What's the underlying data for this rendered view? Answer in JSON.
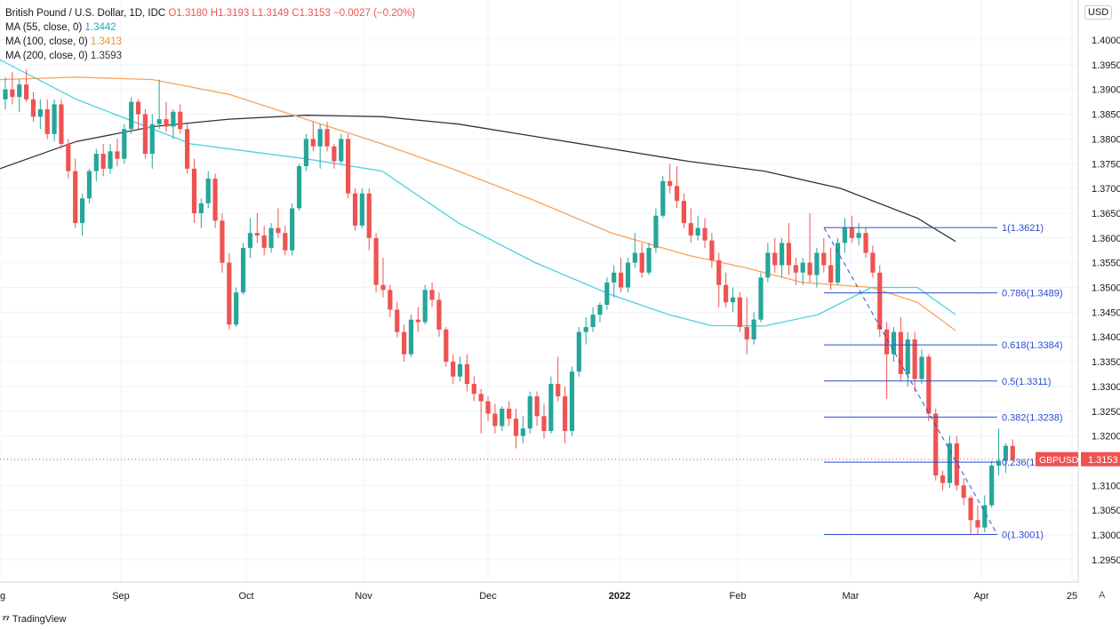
{
  "legend": {
    "symbol": "British Pound / U.S. Dollar, 1D, IDC",
    "ohlc": {
      "O": "1.3180",
      "H": "1.3193",
      "L": "1.3149",
      "C": "1.3153",
      "chg": "−0.0027 (−0.20%)"
    },
    "ma55": {
      "label": "MA (55, close, 0)",
      "value": "1.3442"
    },
    "ma100": {
      "label": "MA (100, close, 0)",
      "value": "1.3413"
    },
    "ma200": {
      "label": "MA (200, close, 0)",
      "value": "1.3593"
    }
  },
  "currency_button": "USD",
  "auto_button": "A",
  "branding": "TradingView",
  "colors": {
    "up": "#26a69a",
    "down": "#ef5350",
    "ma55": "#4dd0e1",
    "ma100": "#f7a35c",
    "ma200": "#333333",
    "fib": "#2a4dd0",
    "grid": "#f0f3fa"
  },
  "chart_data": {
    "type": "candlestick",
    "title": "British Pound / U.S. Dollar, 1D, IDC",
    "ylim": [
      1.2925,
      1.405
    ],
    "y_ticks": [
      "1.4000",
      "1.3950",
      "1.3900",
      "1.3850",
      "1.3800",
      "1.3750",
      "1.3700",
      "1.3650",
      "1.3600",
      "1.3550",
      "1.3500",
      "1.3450",
      "1.3400",
      "1.3350",
      "1.3300",
      "1.3250",
      "1.3200",
      "1.3150",
      "1.3100",
      "1.3050",
      "1.3000",
      "1.2950"
    ],
    "x_labels": [
      "g",
      "Sep",
      "Oct",
      "Nov",
      "Dec",
      "2022",
      "Feb",
      "Mar",
      "Apr",
      "25"
    ],
    "last_price": {
      "label": "GBPUSD",
      "value": "1.3153"
    },
    "candles": [
      [
        1.388,
        1.3925,
        1.386,
        1.39
      ],
      [
        1.39,
        1.3935,
        1.387,
        1.3885
      ],
      [
        1.3885,
        1.392,
        1.3855,
        1.391
      ],
      [
        1.391,
        1.394,
        1.3875,
        1.388
      ],
      [
        1.388,
        1.3895,
        1.3835,
        1.3845
      ],
      [
        1.3845,
        1.388,
        1.382,
        1.386
      ],
      [
        1.386,
        1.388,
        1.38,
        1.381
      ],
      [
        1.381,
        1.388,
        1.3795,
        1.387
      ],
      [
        1.387,
        1.388,
        1.378,
        1.379
      ],
      [
        1.379,
        1.38,
        1.372,
        1.3735
      ],
      [
        1.3735,
        1.376,
        1.362,
        1.363
      ],
      [
        1.363,
        1.369,
        1.3605,
        1.368
      ],
      [
        1.368,
        1.374,
        1.367,
        1.3735
      ],
      [
        1.3735,
        1.378,
        1.3715,
        1.377
      ],
      [
        1.377,
        1.379,
        1.3725,
        1.374
      ],
      [
        1.374,
        1.379,
        1.373,
        1.3775
      ],
      [
        1.3775,
        1.38,
        1.3745,
        1.376
      ],
      [
        1.376,
        1.383,
        1.375,
        1.382
      ],
      [
        1.382,
        1.3885,
        1.381,
        1.3875
      ],
      [
        1.3875,
        1.388,
        1.382,
        1.385
      ],
      [
        1.385,
        1.386,
        1.376,
        1.377
      ],
      [
        1.377,
        1.385,
        1.374,
        1.383
      ],
      [
        1.383,
        1.392,
        1.382,
        1.384
      ],
      [
        1.384,
        1.3875,
        1.3815,
        1.3825
      ],
      [
        1.3825,
        1.386,
        1.38,
        1.3855
      ],
      [
        1.3855,
        1.387,
        1.381,
        1.382
      ],
      [
        1.382,
        1.383,
        1.373,
        1.374
      ],
      [
        1.374,
        1.376,
        1.363,
        1.365
      ],
      [
        1.365,
        1.368,
        1.362,
        1.367
      ],
      [
        1.367,
        1.3735,
        1.366,
        1.372
      ],
      [
        1.372,
        1.373,
        1.362,
        1.3635
      ],
      [
        1.3635,
        1.365,
        1.353,
        1.355
      ],
      [
        1.355,
        1.357,
        1.3415,
        1.3425
      ],
      [
        1.3425,
        1.35,
        1.342,
        1.349
      ],
      [
        1.349,
        1.359,
        1.3485,
        1.358
      ],
      [
        1.358,
        1.364,
        1.356,
        1.361
      ],
      [
        1.361,
        1.365,
        1.359,
        1.3605
      ],
      [
        1.3605,
        1.3625,
        1.3565,
        1.358
      ],
      [
        1.358,
        1.363,
        1.357,
        1.362
      ],
      [
        1.362,
        1.366,
        1.36,
        1.361
      ],
      [
        1.361,
        1.3625,
        1.3565,
        1.3575
      ],
      [
        1.3575,
        1.367,
        1.3565,
        1.366
      ],
      [
        1.366,
        1.375,
        1.3655,
        1.3745
      ],
      [
        1.3745,
        1.381,
        1.3735,
        1.38
      ],
      [
        1.38,
        1.3835,
        1.3775,
        1.3785
      ],
      [
        1.3785,
        1.383,
        1.374,
        1.382
      ],
      [
        1.382,
        1.3835,
        1.3775,
        1.3785
      ],
      [
        1.3785,
        1.379,
        1.374,
        1.3755
      ],
      [
        1.3755,
        1.381,
        1.375,
        1.38
      ],
      [
        1.38,
        1.381,
        1.368,
        1.369
      ],
      [
        1.369,
        1.37,
        1.3615,
        1.3625
      ],
      [
        1.3625,
        1.37,
        1.362,
        1.369
      ],
      [
        1.369,
        1.37,
        1.3575,
        1.36
      ],
      [
        1.36,
        1.361,
        1.349,
        1.3505
      ],
      [
        1.3505,
        1.356,
        1.348,
        1.3495
      ],
      [
        1.3495,
        1.3505,
        1.344,
        1.3455
      ],
      [
        1.3455,
        1.347,
        1.34,
        1.341
      ],
      [
        1.341,
        1.3425,
        1.335,
        1.3365
      ],
      [
        1.3365,
        1.3445,
        1.336,
        1.3435
      ],
      [
        1.3435,
        1.346,
        1.341,
        1.343
      ],
      [
        1.343,
        1.3505,
        1.3425,
        1.3495
      ],
      [
        1.3495,
        1.351,
        1.346,
        1.3475
      ],
      [
        1.3475,
        1.349,
        1.34,
        1.3415
      ],
      [
        1.3415,
        1.342,
        1.334,
        1.335
      ],
      [
        1.335,
        1.3365,
        1.3305,
        1.332
      ],
      [
        1.332,
        1.336,
        1.331,
        1.3345
      ],
      [
        1.3345,
        1.3365,
        1.329,
        1.3305
      ],
      [
        1.3305,
        1.332,
        1.327,
        1.3285
      ],
      [
        1.3285,
        1.3295,
        1.3205,
        1.327
      ],
      [
        1.327,
        1.328,
        1.323,
        1.3245
      ],
      [
        1.3245,
        1.3265,
        1.3205,
        1.322
      ],
      [
        1.322,
        1.326,
        1.321,
        1.3255
      ],
      [
        1.3255,
        1.327,
        1.322,
        1.3235
      ],
      [
        1.3235,
        1.3255,
        1.3175,
        1.32
      ],
      [
        1.32,
        1.324,
        1.3185,
        1.3215
      ],
      [
        1.3215,
        1.329,
        1.3205,
        1.328
      ],
      [
        1.328,
        1.329,
        1.322,
        1.324
      ],
      [
        1.324,
        1.3265,
        1.3195,
        1.321
      ],
      [
        1.321,
        1.332,
        1.3205,
        1.3305
      ],
      [
        1.3305,
        1.336,
        1.327,
        1.328
      ],
      [
        1.328,
        1.33,
        1.3185,
        1.321
      ],
      [
        1.321,
        1.334,
        1.32,
        1.333
      ],
      [
        1.333,
        1.342,
        1.332,
        1.341
      ],
      [
        1.341,
        1.344,
        1.3385,
        1.342
      ],
      [
        1.342,
        1.346,
        1.341,
        1.3445
      ],
      [
        1.3445,
        1.347,
        1.343,
        1.3465
      ],
      [
        1.3465,
        1.352,
        1.3455,
        1.351
      ],
      [
        1.351,
        1.3545,
        1.348,
        1.353
      ],
      [
        1.353,
        1.356,
        1.349,
        1.35
      ],
      [
        1.35,
        1.356,
        1.349,
        1.355
      ],
      [
        1.355,
        1.361,
        1.354,
        1.357
      ],
      [
        1.357,
        1.359,
        1.352,
        1.353
      ],
      [
        1.353,
        1.359,
        1.3525,
        1.358
      ],
      [
        1.358,
        1.366,
        1.357,
        1.3645
      ],
      [
        1.3645,
        1.3725,
        1.364,
        1.3715
      ],
      [
        1.3715,
        1.375,
        1.369,
        1.3705
      ],
      [
        1.3705,
        1.3745,
        1.366,
        1.3675
      ],
      [
        1.3675,
        1.369,
        1.362,
        1.363
      ],
      [
        1.363,
        1.366,
        1.359,
        1.3605
      ],
      [
        1.3605,
        1.3645,
        1.3595,
        1.362
      ],
      [
        1.362,
        1.364,
        1.358,
        1.3595
      ],
      [
        1.3595,
        1.361,
        1.354,
        1.3555
      ],
      [
        1.3555,
        1.357,
        1.346,
        1.3505
      ],
      [
        1.3505,
        1.353,
        1.346,
        1.347
      ],
      [
        1.347,
        1.35,
        1.345,
        1.348
      ],
      [
        1.348,
        1.349,
        1.341,
        1.342
      ],
      [
        1.342,
        1.348,
        1.3365,
        1.3395
      ],
      [
        1.3395,
        1.345,
        1.3385,
        1.3435
      ],
      [
        1.3435,
        1.353,
        1.343,
        1.352
      ],
      [
        1.352,
        1.359,
        1.351,
        1.357
      ],
      [
        1.357,
        1.36,
        1.353,
        1.3545
      ],
      [
        1.3545,
        1.36,
        1.352,
        1.359
      ],
      [
        1.359,
        1.363,
        1.3525,
        1.3545
      ],
      [
        1.3545,
        1.356,
        1.3505,
        1.353
      ],
      [
        1.353,
        1.356,
        1.3505,
        1.355
      ],
      [
        1.355,
        1.365,
        1.351,
        1.3525
      ],
      [
        1.3525,
        1.358,
        1.35,
        1.357
      ],
      [
        1.357,
        1.36,
        1.353,
        1.3545
      ],
      [
        1.3545,
        1.358,
        1.3495,
        1.351
      ],
      [
        1.351,
        1.36,
        1.3505,
        1.359
      ],
      [
        1.359,
        1.364,
        1.357,
        1.362
      ],
      [
        1.362,
        1.3645,
        1.359,
        1.36
      ],
      [
        1.36,
        1.363,
        1.3585,
        1.361
      ],
      [
        1.361,
        1.3621,
        1.356,
        1.357
      ],
      [
        1.357,
        1.3585,
        1.352,
        1.353
      ],
      [
        1.353,
        1.3545,
        1.34,
        1.3415
      ],
      [
        1.3415,
        1.343,
        1.3275,
        1.3365
      ],
      [
        1.3365,
        1.342,
        1.335,
        1.341
      ],
      [
        1.341,
        1.344,
        1.331,
        1.3325
      ],
      [
        1.3325,
        1.341,
        1.33,
        1.3395
      ],
      [
        1.3395,
        1.341,
        1.329,
        1.3315
      ],
      [
        1.3315,
        1.3375,
        1.3305,
        1.336
      ],
      [
        1.336,
        1.3365,
        1.323,
        1.3245
      ],
      [
        1.3245,
        1.3255,
        1.311,
        1.312
      ],
      [
        1.312,
        1.313,
        1.309,
        1.3105
      ],
      [
        1.3105,
        1.32,
        1.3095,
        1.3185
      ],
      [
        1.3185,
        1.32,
        1.309,
        1.31
      ],
      [
        1.31,
        1.3115,
        1.306,
        1.3075
      ],
      [
        1.3075,
        1.308,
        1.3001,
        1.303
      ],
      [
        1.303,
        1.306,
        1.3001,
        1.3015
      ],
      [
        1.3015,
        1.308,
        1.3005,
        1.306
      ],
      [
        1.306,
        1.315,
        1.3055,
        1.314
      ],
      [
        1.314,
        1.3215,
        1.312,
        1.315
      ],
      [
        1.315,
        1.3185,
        1.3125,
        1.318
      ],
      [
        1.318,
        1.3193,
        1.3149,
        1.3153
      ]
    ],
    "ma55": [
      [
        0,
        1.396
      ],
      [
        20,
        1.388
      ],
      [
        50,
        1.379
      ],
      [
        80,
        1.376
      ],
      [
        100,
        1.3735
      ],
      [
        120,
        1.363
      ],
      [
        140,
        1.355
      ],
      [
        160,
        1.3485
      ],
      [
        175,
        1.3445
      ],
      [
        186,
        1.3423
      ],
      [
        200,
        1.3422
      ],
      [
        214,
        1.3445
      ],
      [
        228,
        1.35
      ],
      [
        240,
        1.35
      ],
      [
        250,
        1.3445
      ]
    ],
    "ma100": [
      [
        0,
        1.392
      ],
      [
        20,
        1.3925
      ],
      [
        40,
        1.392
      ],
      [
        60,
        1.389
      ],
      [
        80,
        1.384
      ],
      [
        100,
        1.379
      ],
      [
        120,
        1.3735
      ],
      [
        140,
        1.3675
      ],
      [
        160,
        1.361
      ],
      [
        180,
        1.3565
      ],
      [
        195,
        1.354
      ],
      [
        210,
        1.351
      ],
      [
        228,
        1.35
      ],
      [
        240,
        1.347
      ],
      [
        250,
        1.3413
      ]
    ],
    "ma200": [
      [
        0,
        1.374
      ],
      [
        20,
        1.3795
      ],
      [
        40,
        1.3825
      ],
      [
        60,
        1.384
      ],
      [
        80,
        1.3848
      ],
      [
        100,
        1.3845
      ],
      [
        120,
        1.383
      ],
      [
        140,
        1.3805
      ],
      [
        160,
        1.378
      ],
      [
        180,
        1.3755
      ],
      [
        200,
        1.3735
      ],
      [
        220,
        1.37
      ],
      [
        240,
        1.364
      ],
      [
        250,
        1.3593
      ]
    ],
    "ma_x_range": [
      0,
      250
    ],
    "fib_levels": [
      {
        "label": "1(1.3621)",
        "value": 1.3621
      },
      {
        "label": "0.786(1.3489)",
        "value": 1.3489
      },
      {
        "label": "0.618(1.3384)",
        "value": 1.3384
      },
      {
        "label": "0.5(1.3311)",
        "value": 1.3311
      },
      {
        "label": "0.382(1.3238)",
        "value": 1.3238
      },
      {
        "label": "0.236(1",
        "value": 1.3147
      },
      {
        "label": "0(1.3001)",
        "value": 1.3001
      }
    ],
    "fib_diagonal": {
      "from": 1.3621,
      "to": 1.3001
    }
  }
}
